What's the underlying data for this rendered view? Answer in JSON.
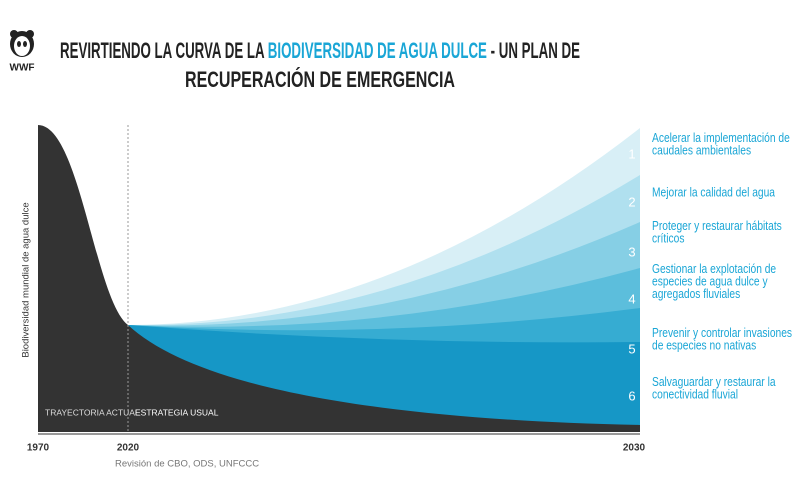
{
  "logo": "WWF",
  "title": {
    "line1": [
      "REVIRTIENDO LA CURVA DE LA ",
      "BIODIVERSIDAD DE AGUA DULCE",
      " - UN PLAN DE"
    ],
    "line2": "RECUPERACIÓN DE EMERGENCIA"
  },
  "y_axis_label": "Biodiversidad mundial de agua dulce",
  "x_labels": [
    "1970",
    "2020",
    "2030"
  ],
  "source": "Revisión de  CBO, ODS, UNFCCC",
  "regions": [
    "TRAYECTORIA ACTUAL",
    "ESTRATEGIA USUAL"
  ],
  "actions": [
    {
      "number": "1",
      "label": [
        "Acelerar la implementación de",
        "caudales ambientales"
      ]
    },
    {
      "number": "2",
      "label": [
        "Mejorar la calidad del agua"
      ]
    },
    {
      "number": "3",
      "label": [
        "Proteger y restaurar hábitats",
        "críticos"
      ]
    },
    {
      "number": "4",
      "label": [
        "Gestionar la explotación de",
        "especies de agua dulce y",
        "agregados fluviales"
      ]
    },
    {
      "number": "5",
      "label": [
        "Prevenir y controlar invasiones",
        "de especies no nativas"
      ]
    },
    {
      "number": "6",
      "label": [
        "Salvaguardar y restaurar la",
        "conectividad fluvial"
      ]
    }
  ]
}
